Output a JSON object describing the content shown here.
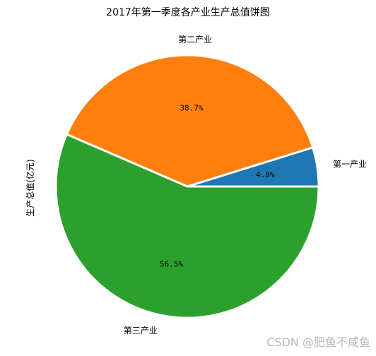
{
  "chart_data": {
    "type": "pie",
    "title": "2017年第一季度各产业生产总值饼图",
    "ylabel": "生产总值(亿元)",
    "categories": [
      "第一产业",
      "第二产业",
      "第三产业"
    ],
    "percent_labels": [
      "4.8%",
      "38.7%",
      "56.5%"
    ],
    "values": [
      4.8,
      38.7,
      56.5
    ],
    "colors": [
      "#1f77b4",
      "#ff7f0e",
      "#2ca02c"
    ],
    "start_angle": "0° (3 o'clock), counter-clockwise",
    "explode": "all slices slightly separated with white edges"
  },
  "watermark": "CSDN @肥鱼不咸鱼"
}
